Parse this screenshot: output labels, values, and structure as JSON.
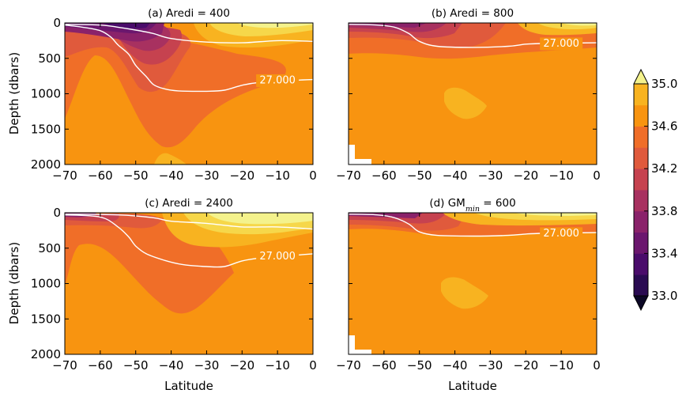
{
  "chart_data": {
    "type": "heatmap",
    "xlabel": "Latitude",
    "ylabel": "Depth (dbars)",
    "xlim": [
      -70,
      0
    ],
    "ylim": [
      2000,
      0
    ],
    "x_ticks": [
      "−70",
      "−60",
      "−50",
      "−40",
      "−30",
      "−20",
      "−10",
      "0"
    ],
    "y_ticks": [
      "0",
      "500",
      "1000",
      "1500",
      "2000"
    ],
    "colorbar": {
      "levels": [
        33.0,
        33.2,
        33.4,
        33.6,
        33.8,
        34.0,
        34.2,
        34.4,
        34.6,
        34.8,
        35.0
      ],
      "tick_labels": [
        "33.0",
        "33.4",
        "33.8",
        "34.2",
        "34.6",
        "35.0"
      ],
      "colors": [
        "#0c0826",
        "#2a0b52",
        "#4a0c6b",
        "#6b176e",
        "#8a226a",
        "#a83160",
        "#c6424f",
        "#e05a3c",
        "#f06e28",
        "#f89410",
        "#f8b320",
        "#f6d74a",
        "#f4f28c"
      ],
      "extend": "both"
    },
    "contour": {
      "value": 27.0,
      "label": "27.000",
      "color": "#ffffff"
    },
    "panels": [
      {
        "id": "a",
        "title": "(a) Aredi = 400",
        "contour_27": [
          [
            -70,
            30
          ],
          [
            -65,
            60
          ],
          [
            -60,
            110
          ],
          [
            -57,
            200
          ],
          [
            -55,
            310
          ],
          [
            -52,
            440
          ],
          [
            -50,
            600
          ],
          [
            -47,
            760
          ],
          [
            -45,
            870
          ],
          [
            -42,
            930
          ],
          [
            -38,
            960
          ],
          [
            -30,
            965
          ],
          [
            -25,
            950
          ],
          [
            -20,
            880
          ],
          [
            -15,
            840
          ],
          [
            -5,
            810
          ],
          [
            0,
            800
          ]
        ],
        "surface_isopycnal": [
          [
            -70,
            20
          ],
          [
            -60,
            30
          ],
          [
            -55,
            60
          ],
          [
            -50,
            100
          ],
          [
            -45,
            150
          ],
          [
            -40,
            220
          ],
          [
            -30,
            270
          ],
          [
            -20,
            280
          ],
          [
            -10,
            250
          ],
          [
            0,
            260
          ]
        ],
        "label_pos": [
          -10,
          815
        ]
      },
      {
        "id": "b",
        "title": "(b) Aredi = 800",
        "contour_27": [
          [
            -70,
            20
          ],
          [
            -62,
            30
          ],
          [
            -57,
            60
          ],
          [
            -53,
            150
          ],
          [
            -50,
            260
          ],
          [
            -45,
            330
          ],
          [
            -35,
            345
          ],
          [
            -25,
            330
          ],
          [
            -20,
            300
          ],
          [
            -15,
            290
          ],
          [
            0,
            280
          ]
        ],
        "label_pos": [
          -10,
          295
        ]
      },
      {
        "id": "c",
        "title": "(c) Aredi = 2400",
        "contour_27": [
          [
            -70,
            30
          ],
          [
            -60,
            60
          ],
          [
            -55,
            200
          ],
          [
            -52,
            340
          ],
          [
            -50,
            470
          ],
          [
            -47,
            580
          ],
          [
            -42,
            670
          ],
          [
            -37,
            730
          ],
          [
            -30,
            760
          ],
          [
            -25,
            760
          ],
          [
            -20,
            680
          ],
          [
            -15,
            640
          ],
          [
            -5,
            600
          ],
          [
            0,
            580
          ]
        ],
        "surface_isopycnal": [
          [
            -70,
            20
          ],
          [
            -55,
            30
          ],
          [
            -45,
            70
          ],
          [
            -40,
            120
          ],
          [
            -30,
            150
          ],
          [
            -20,
            200
          ],
          [
            -10,
            200
          ],
          [
            0,
            230
          ]
        ],
        "label_pos": [
          -10,
          620
        ]
      },
      {
        "id": "d",
        "title_prefix": "(d) GM",
        "title_sub": "min",
        "title_suffix": " = 600",
        "contour_27": [
          [
            -70,
            20
          ],
          [
            -62,
            30
          ],
          [
            -57,
            70
          ],
          [
            -53,
            160
          ],
          [
            -50,
            270
          ],
          [
            -45,
            320
          ],
          [
            -35,
            330
          ],
          [
            -25,
            320
          ],
          [
            -20,
            300
          ],
          [
            -15,
            290
          ],
          [
            0,
            280
          ]
        ],
        "label_pos": [
          -10,
          295
        ]
      }
    ]
  }
}
